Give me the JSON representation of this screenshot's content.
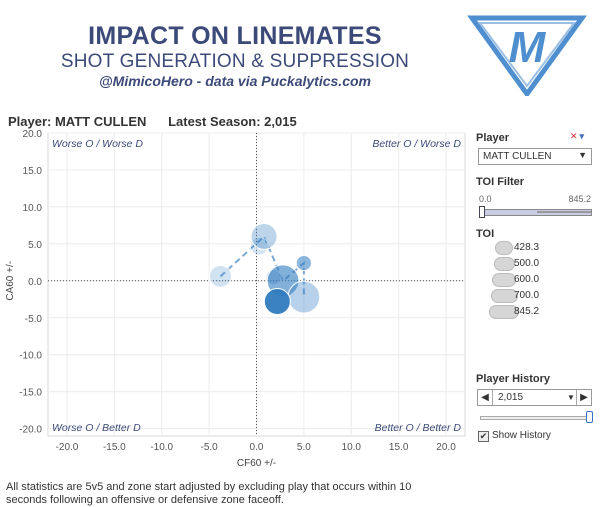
{
  "header": {
    "title": "IMPACT ON LINEMATES",
    "subtitle": "SHOT GENERATION & SUPPRESSION",
    "byline": "@MimicoHero - data via Puckalytics.com"
  },
  "player_line": {
    "player": "Player: MATT CULLEN",
    "season": "Latest Season: 2,015"
  },
  "chart_data": {
    "type": "scatter",
    "xlabel": "CF60 +/-",
    "ylabel": "CA60 +/-",
    "xlim": [
      -22,
      22
    ],
    "ylim": [
      -21,
      20
    ],
    "xticks": [
      "-20.0",
      "-15.0",
      "-10.0",
      "-5.0",
      "0.0",
      "5.0",
      "10.0",
      "15.0",
      "20.0"
    ],
    "yticks": [
      "20.0",
      "15.0",
      "10.0",
      "5.0",
      "0.0",
      "-5.0",
      "-10.0",
      "-15.0",
      "-20.0"
    ],
    "quadrant_labels": {
      "top_left": "Worse O / Worse D",
      "top_right": "Better O / Worse D",
      "bottom_left": "Worse O / Better D",
      "bottom_right": "Better O / Better D"
    },
    "grid": true,
    "points": [
      {
        "x": -3.8,
        "y": 0.6,
        "toi": 600,
        "alpha": 0.22
      },
      {
        "x": 0.3,
        "y": 4.7,
        "toi": 500,
        "alpha": 0.2
      },
      {
        "x": 0.8,
        "y": 6.0,
        "toi": 700,
        "alpha": 0.32
      },
      {
        "x": 1.8,
        "y": 0.5,
        "toi": 428.3,
        "alpha": 0.3
      },
      {
        "x": 5.0,
        "y": 2.4,
        "toi": 428.3,
        "alpha": 0.55
      },
      {
        "x": 2.8,
        "y": 0.0,
        "toi": 845.2,
        "alpha": 0.6
      },
      {
        "x": 5.0,
        "y": -2.2,
        "toi": 845.2,
        "alpha": 0.35
      },
      {
        "x": 2.2,
        "y": -2.8,
        "toi": 700,
        "alpha": 0.95
      }
    ],
    "path": [
      [
        -3.8,
        0.6
      ],
      [
        0.8,
        6.0
      ],
      [
        2.8,
        0.0
      ],
      [
        5.0,
        2.4
      ],
      [
        5.0,
        -2.2
      ]
    ]
  },
  "sidebar": {
    "player_label": "Player",
    "player_value": "MATT CULLEN",
    "toi_filter_label": "TOI Filter",
    "toi_min": "0.0",
    "toi_max": "845.2",
    "toi_legend_label": "TOI",
    "toi_legend": [
      "428.3",
      "500.0",
      "600.0",
      "700.0",
      "845.2"
    ],
    "history_label": "Player History",
    "history_value": "2,015",
    "show_history_label": "Show History",
    "show_history_checked": true
  },
  "footer": {
    "note": "All statistics are 5v5 and zone start adjusted by excluding play that occurs within 10 seconds following an offensive or defensive zone faceoff."
  },
  "colors": {
    "title": "#3b4a78",
    "point": "#2f7bbf",
    "logo_blue": "#4f8fcf"
  }
}
